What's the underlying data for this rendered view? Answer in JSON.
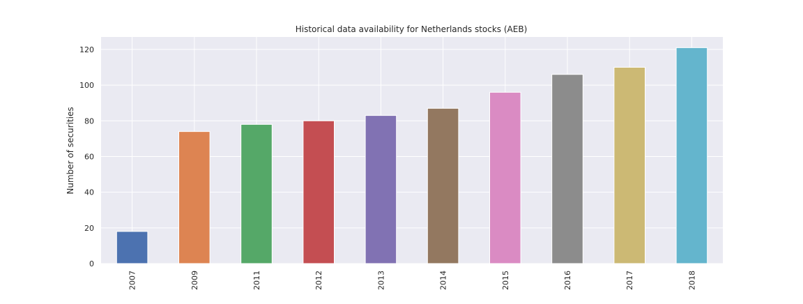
{
  "chart_data": {
    "type": "bar",
    "title": "Historical data availability for Netherlands stocks (AEB)",
    "xlabel": "",
    "ylabel": "Number of securities",
    "categories": [
      "2007",
      "2009",
      "2011",
      "2012",
      "2013",
      "2014",
      "2015",
      "2016",
      "2017",
      "2018"
    ],
    "values": [
      18,
      74,
      78,
      80,
      83,
      87,
      96,
      106,
      110,
      121
    ],
    "colors": [
      "#4c72b0",
      "#dd8452",
      "#55a868",
      "#c44e52",
      "#8172b3",
      "#937860",
      "#da8bc3",
      "#8c8c8c",
      "#ccb974",
      "#64b5cd"
    ],
    "ylim": [
      0,
      127
    ],
    "yticks": [
      0,
      20,
      40,
      60,
      80,
      100,
      120
    ],
    "grid": true,
    "background": "#eaeaf2"
  }
}
